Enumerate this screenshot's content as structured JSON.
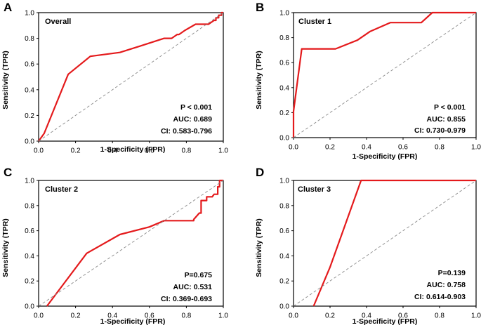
{
  "colors": {
    "roc": "#e41a1c",
    "diagonal": "#8a8a8a",
    "axis": "#000000"
  },
  "chart_data": [
    {
      "panel": "A",
      "type": "line",
      "title": "Overall",
      "xlabel": "1-Specificity (FPR)",
      "ylabel": "Sensitivity (TPR)",
      "xlim": [
        0,
        1
      ],
      "ylim": [
        0,
        1
      ],
      "xticks": [
        "0.0",
        "0.2",
        "0.4",
        "0.6",
        "0.8",
        "1.0"
      ],
      "yticks": [
        "0.0",
        "0.2",
        "0.4",
        "0.6",
        "0.8",
        "1.0"
      ],
      "stats": [
        "P < 0.001",
        "AUC: 0.689",
        "CI: 0.583-0.796"
      ],
      "series": [
        {
          "name": "ROC",
          "x": [
            0,
            0.03,
            0.16,
            0.28,
            0.44,
            0.55,
            0.68,
            0.72,
            0.75,
            0.76,
            0.79,
            0.85,
            0.92,
            0.95,
            0.96,
            0.96,
            0.975,
            0.975,
            0.99,
            0.99,
            1.0
          ],
          "y": [
            0,
            0.06,
            0.52,
            0.66,
            0.69,
            0.74,
            0.8,
            0.8,
            0.83,
            0.83,
            0.86,
            0.91,
            0.91,
            0.94,
            0.94,
            0.96,
            0.96,
            0.98,
            0.98,
            1.0,
            1.0
          ]
        },
        {
          "name": "Reference",
          "x": [
            0,
            1
          ],
          "y": [
            0,
            1
          ]
        }
      ]
    },
    {
      "panel": "B",
      "type": "line",
      "title": "Cluster 1",
      "xlabel": "1-Specificity (FPR)",
      "ylabel": "Sensitivity (TPR)",
      "xlim": [
        0,
        1
      ],
      "ylim": [
        0,
        1
      ],
      "xticks": [
        "0.0",
        "0.2",
        "0.4",
        "0.6",
        "0.8",
        "1.0"
      ],
      "yticks": [
        "0.0",
        "0.2",
        "0.4",
        "0.6",
        "0.8",
        "1.0"
      ],
      "stats": [
        "P < 0.001",
        "AUC: 0.855",
        "CI: 0.730-0.979"
      ],
      "series": [
        {
          "name": "ROC",
          "x": [
            0,
            0,
            0.045,
            0.23,
            0.35,
            0.42,
            0.53,
            0.7,
            0.76,
            1.0
          ],
          "y": [
            0,
            0.21,
            0.71,
            0.71,
            0.78,
            0.85,
            0.92,
            0.92,
            1.0,
            1.0
          ]
        },
        {
          "name": "Reference",
          "x": [
            0,
            1
          ],
          "y": [
            0,
            1
          ]
        }
      ]
    },
    {
      "panel": "C",
      "type": "line",
      "title": "Cluster 2",
      "xlabel": "1-Specificity (FPR)",
      "ylabel": "Sensitivity (TPR)",
      "xlim": [
        0,
        1
      ],
      "ylim": [
        0,
        1
      ],
      "xticks": [
        "0.0",
        "0.2",
        "0.4",
        "0.6",
        "0.8",
        "1.0"
      ],
      "yticks": [
        "0.0",
        "0.2",
        "0.4",
        "0.6",
        "0.8",
        "1.0"
      ],
      "stats": [
        "P=0.675",
        "AUC: 0.531",
        "CI: 0.369-0.693"
      ],
      "series": [
        {
          "name": "ROC",
          "x": [
            0.045,
            0.26,
            0.44,
            0.6,
            0.68,
            0.84,
            0.84,
            0.87,
            0.88,
            0.88,
            0.91,
            0.91,
            0.94,
            0.95,
            0.97,
            0.97,
            0.98,
            0.98,
            1.0
          ],
          "y": [
            0,
            0.42,
            0.57,
            0.63,
            0.68,
            0.68,
            0.69,
            0.74,
            0.74,
            0.84,
            0.84,
            0.87,
            0.87,
            0.89,
            0.89,
            0.95,
            0.95,
            1.0,
            1.0
          ]
        },
        {
          "name": "Reference",
          "x": [
            0,
            1
          ],
          "y": [
            0,
            1
          ]
        }
      ]
    },
    {
      "panel": "D",
      "type": "line",
      "title": "Cluster 3",
      "xlabel": "1-Specificity (FPR)",
      "ylabel": "Sensitivity (TPR)",
      "xlim": [
        0,
        1
      ],
      "ylim": [
        0,
        1
      ],
      "xticks": [
        "0.0",
        "0.2",
        "0.4",
        "0.6",
        "0.8",
        "1.0"
      ],
      "yticks": [
        "0.0",
        "0.2",
        "0.4",
        "0.6",
        "0.8",
        "1.0"
      ],
      "stats": [
        "P=0.139",
        "AUC: 0.758",
        "CI: 0.614-0.903"
      ],
      "series": [
        {
          "name": "ROC",
          "x": [
            0.11,
            0.2,
            0.37,
            1.0
          ],
          "y": [
            0,
            0.31,
            1.0,
            1.0
          ]
        },
        {
          "name": "Reference",
          "x": [
            0,
            1
          ],
          "y": [
            0,
            1
          ]
        }
      ]
    }
  ]
}
